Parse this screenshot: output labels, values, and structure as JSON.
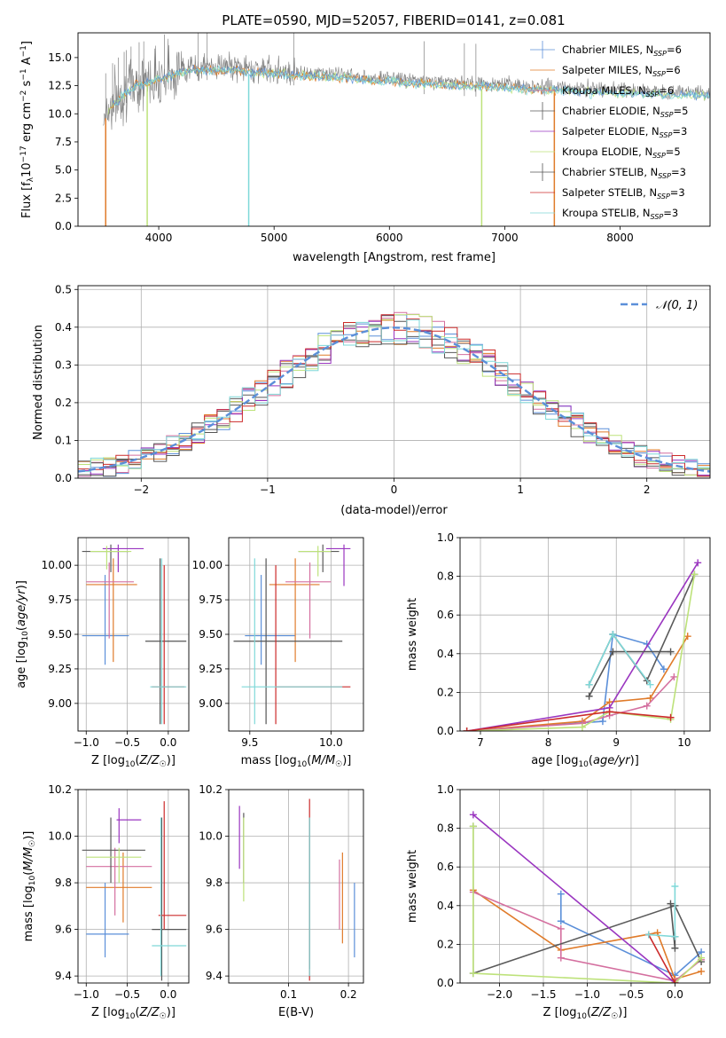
{
  "page": {
    "title": "PLATE=0590, MJD=52057, FIBERID=0141, z=0.081"
  },
  "colors": {
    "chabrier_miles": "#5b8fd9",
    "salpeter_miles": "#e07b2a",
    "kroupa_miles": "#d46f9f",
    "chabrier_elodie": "#5a5a5a",
    "salpeter_elodie": "#9a36c0",
    "kroupa_elodie": "#bde27a",
    "chabrier_stelib": "#555555",
    "salpeter_stelib": "#cc2b2b",
    "kroupa_stelib": "#7fd8d8",
    "gauss": "#5b8fd9",
    "grid": "#b0b0b0",
    "spectrum_gray": "#7f7f7f"
  },
  "chart_data": [
    {
      "id": "spectrum",
      "type": "line",
      "title": "PLATE=0590, MJD=52057, FIBERID=0141, z=0.081",
      "xlabel": "wavelength [Angstrom, rest frame]",
      "ylabel": "Flux [f_λ 10^-17 erg cm^-2 s^-1 A^-1]",
      "xlim": [
        3300,
        8780
      ],
      "ylim": [
        0,
        17.2
      ],
      "xticks": [
        "4000",
        "5000",
        "6000",
        "7000",
        "8000"
      ],
      "yticks": [
        "0.0",
        "2.5",
        "5.0",
        "7.5",
        "10.0",
        "12.5",
        "15.0"
      ],
      "legend_position": "upper-right",
      "series": [
        {
          "name": "Chabrier MILES, N_SSP=6"
        },
        {
          "name": "Salpeter MILES, N_SSP=6"
        },
        {
          "name": "Kroupa MILES, N_SSP=6"
        },
        {
          "name": "Chabrier ELODIE, N_SSP=5"
        },
        {
          "name": "Salpeter ELODIE, N_SSP=3"
        },
        {
          "name": "Kroupa ELODIE, N_SSP=5"
        },
        {
          "name": "Chabrier STELIB, N_SSP=3"
        },
        {
          "name": "Salpeter STELIB, N_SSP=3"
        },
        {
          "name": "Kroupa STELIB, N_SSP=3"
        }
      ],
      "envelope": {
        "x": [
          3500,
          3600,
          3700,
          3800,
          3900,
          4000,
          4200,
          4400,
          4600,
          4800,
          5000,
          5200,
          5400,
          5600,
          5800,
          6000,
          6200,
          6400,
          6600,
          6800,
          7000,
          7200,
          7400,
          7600,
          7800,
          8000,
          8200,
          8400,
          8780
        ],
        "y": [
          9.5,
          11.0,
          12.0,
          12.8,
          13.0,
          13.4,
          14.0,
          14.2,
          14.2,
          14.0,
          13.9,
          13.7,
          13.6,
          13.5,
          13.3,
          13.2,
          13.0,
          12.9,
          12.8,
          12.7,
          12.6,
          12.5,
          12.4,
          12.3,
          12.2,
          12.1,
          12.0,
          12.0,
          11.9
        ]
      }
    },
    {
      "id": "residuals",
      "type": "line",
      "xlabel": "(data-model)/error",
      "ylabel": "Normed distribution",
      "xlim": [
        -2.5,
        2.5
      ],
      "ylim": [
        0,
        0.51
      ],
      "xticks": [
        "−2",
        "−1",
        "0",
        "1",
        "2"
      ],
      "yticks": [
        "0.0",
        "0.1",
        "0.2",
        "0.3",
        "0.4",
        "0.5"
      ],
      "legend": "𝒩(0, 1)",
      "legend_position": "upper-right",
      "bin_width": 0.1
    },
    {
      "id": "age_vs_Z",
      "type": "scatter",
      "xlabel": "Z [log10(Z/Z☉)]",
      "ylabel": "age  [log10(age/yr)]",
      "xlim": [
        -1.1,
        0.25
      ],
      "ylim": [
        8.8,
        10.2
      ],
      "xticks": [
        "−1.0",
        "−0.5",
        "0.0"
      ],
      "yticks": [
        "9.00",
        "9.25",
        "9.50",
        "9.75",
        "10.00"
      ],
      "points": [
        {
          "c": "chabrier_miles",
          "x": -0.77,
          "y": 9.49,
          "xlo": -1.05,
          "xhi": -0.48,
          "ylo": 9.28,
          "yhi": 9.93
        },
        {
          "c": "salpeter_miles",
          "x": -0.67,
          "y": 9.86,
          "xlo": -1.0,
          "xhi": -0.38,
          "ylo": 9.3,
          "yhi": 10.05
        },
        {
          "c": "kroupa_miles",
          "x": -0.72,
          "y": 9.88,
          "xlo": -1.0,
          "xhi": -0.42,
          "ylo": 9.47,
          "yhi": 10.02
        },
        {
          "c": "chabrier_elodie",
          "x": -0.7,
          "y": 10.1,
          "xlo": -1.05,
          "xhi": -0.48,
          "ylo": 9.95,
          "yhi": 10.15
        },
        {
          "c": "salpeter_elodie",
          "x": -0.61,
          "y": 10.12,
          "xlo": -0.8,
          "xhi": -0.3,
          "ylo": 9.95,
          "yhi": 10.15
        },
        {
          "c": "kroupa_elodie",
          "x": -0.75,
          "y": 10.1,
          "xlo": -0.95,
          "xhi": -0.45,
          "ylo": 9.97,
          "yhi": 10.14
        },
        {
          "c": "chabrier_stelib",
          "x": -0.1,
          "y": 9.45,
          "xlo": -0.28,
          "xhi": 0.22,
          "ylo": 8.85,
          "yhi": 10.05
        },
        {
          "c": "salpeter_stelib",
          "x": -0.05,
          "y": 9.12,
          "xlo": -0.2,
          "xhi": 0.2,
          "ylo": 8.85,
          "yhi": 10.0
        },
        {
          "c": "kroupa_stelib",
          "x": -0.08,
          "y": 9.12,
          "xlo": -0.22,
          "xhi": 0.22,
          "ylo": 8.85,
          "yhi": 10.05
        }
      ]
    },
    {
      "id": "age_vs_mass",
      "type": "scatter",
      "xlabel": "mass [log10(M/M☉)]",
      "xlim": [
        9.37,
        10.2
      ],
      "ylim": [
        8.8,
        10.2
      ],
      "xticks": [
        "9.5",
        "10.0"
      ],
      "yticks": [
        "9.00",
        "9.25",
        "9.50",
        "9.75",
        "10.00"
      ],
      "points": [
        {
          "c": "chabrier_miles",
          "x": 9.57,
          "y": 9.49,
          "xlo": 9.47,
          "xhi": 9.78,
          "ylo": 9.28,
          "yhi": 9.93
        },
        {
          "c": "salpeter_miles",
          "x": 9.78,
          "y": 9.86,
          "xlo": 9.62,
          "xhi": 9.93,
          "ylo": 9.3,
          "yhi": 10.05
        },
        {
          "c": "kroupa_miles",
          "x": 9.87,
          "y": 9.88,
          "xlo": 9.72,
          "xhi": 10.0,
          "ylo": 9.47,
          "yhi": 10.02
        },
        {
          "c": "chabrier_elodie",
          "x": 9.95,
          "y": 10.1,
          "xlo": 9.8,
          "xhi": 10.05,
          "ylo": 9.95,
          "yhi": 10.15
        },
        {
          "c": "salpeter_elodie",
          "x": 10.08,
          "y": 10.12,
          "xlo": 9.97,
          "xhi": 10.12,
          "ylo": 9.85,
          "yhi": 10.15
        },
        {
          "c": "kroupa_elodie",
          "x": 9.92,
          "y": 10.1,
          "xlo": 9.8,
          "xhi": 10.0,
          "ylo": 9.92,
          "yhi": 10.14
        },
        {
          "c": "chabrier_stelib",
          "x": 9.6,
          "y": 9.45,
          "xlo": 9.4,
          "xhi": 10.07,
          "ylo": 8.85,
          "yhi": 10.05
        },
        {
          "c": "salpeter_stelib",
          "x": 9.66,
          "y": 9.12,
          "xlo": 9.66,
          "xhi": 10.12,
          "ylo": 8.85,
          "yhi": 10.0
        },
        {
          "c": "kroupa_stelib",
          "x": 9.53,
          "y": 9.12,
          "xlo": 9.45,
          "xhi": 10.07,
          "ylo": 8.85,
          "yhi": 10.05
        }
      ]
    },
    {
      "id": "weight_vs_age",
      "type": "line",
      "xlabel": "age  [log10(age/yr)]",
      "ylabel": "mass weight",
      "xlim": [
        6.7,
        10.38
      ],
      "ylim": [
        0,
        1.0
      ],
      "xticks": [
        "7",
        "8",
        "9",
        "10"
      ],
      "yticks": [
        "0.0",
        "0.2",
        "0.4",
        "0.6",
        "0.8",
        "1.0"
      ],
      "series": [
        {
          "c": "chabrier_miles",
          "x": [
            6.8,
            8.8,
            8.95,
            9.45,
            9.7
          ],
          "y": [
            0.0,
            0.05,
            0.5,
            0.45,
            0.32
          ]
        },
        {
          "c": "salpeter_miles",
          "x": [
            6.8,
            8.5,
            8.9,
            9.5,
            10.05
          ],
          "y": [
            0.0,
            0.05,
            0.15,
            0.17,
            0.49
          ]
        },
        {
          "c": "kroupa_miles",
          "x": [
            6.8,
            8.5,
            8.9,
            9.45,
            9.85
          ],
          "y": [
            0.0,
            0.04,
            0.08,
            0.13,
            0.28
          ]
        },
        {
          "c": "chabrier_elodie",
          "x": [
            8.6,
            8.95,
            9.45,
            10.15
          ],
          "y": [
            0.24,
            0.5,
            0.26,
            0.81
          ]
        },
        {
          "c": "salpeter_elodie",
          "x": [
            6.8,
            8.9,
            10.2
          ],
          "y": [
            0.0,
            0.12,
            0.87
          ]
        },
        {
          "c": "kroupa_elodie",
          "x": [
            6.8,
            8.5,
            8.9,
            9.8,
            10.15
          ],
          "y": [
            0.0,
            0.02,
            0.1,
            0.06,
            0.81
          ]
        },
        {
          "c": "chabrier_stelib",
          "x": [
            8.6,
            8.95,
            9.8
          ],
          "y": [
            0.18,
            0.41,
            0.41
          ]
        },
        {
          "c": "salpeter_stelib",
          "x": [
            6.8,
            8.9,
            9.8
          ],
          "y": [
            0.0,
            0.1,
            0.07
          ]
        },
        {
          "c": "kroupa_stelib",
          "x": [
            8.6,
            8.95,
            9.5
          ],
          "y": [
            0.24,
            0.5,
            0.24
          ]
        }
      ]
    },
    {
      "id": "mass_vs_Z",
      "type": "scatter",
      "xlabel": "Z [log10(Z/Z☉)]",
      "ylabel": "mass [log10(M/M☉)]",
      "xlim": [
        -1.1,
        0.25
      ],
      "ylim": [
        9.37,
        10.2
      ],
      "xticks": [
        "−1.0",
        "−0.5",
        "0.0"
      ],
      "yticks": [
        "9.4",
        "9.6",
        "9.8",
        "10.0",
        "10.2"
      ],
      "points": [
        {
          "c": "chabrier_miles",
          "x": -0.77,
          "y": 9.58,
          "xlo": -1.0,
          "xhi": -0.48,
          "ylo": 9.48,
          "yhi": 9.8
        },
        {
          "c": "salpeter_miles",
          "x": -0.55,
          "y": 9.78,
          "xlo": -1.0,
          "xhi": -0.2,
          "ylo": 9.63,
          "yhi": 9.93
        },
        {
          "c": "kroupa_miles",
          "x": -0.65,
          "y": 9.87,
          "xlo": -1.0,
          "xhi": -0.2,
          "ylo": 9.66,
          "yhi": 9.95
        },
        {
          "c": "chabrier_elodie",
          "x": -0.7,
          "y": 9.94,
          "xlo": -1.05,
          "xhi": -0.28,
          "ylo": 9.8,
          "yhi": 10.08
        },
        {
          "c": "salpeter_elodie",
          "x": -0.6,
          "y": 10.07,
          "xlo": -0.63,
          "xhi": -0.33,
          "ylo": 9.97,
          "yhi": 10.12
        },
        {
          "c": "kroupa_elodie",
          "x": -0.6,
          "y": 9.91,
          "xlo": -1.0,
          "xhi": -0.33,
          "ylo": 9.8,
          "yhi": 9.95
        },
        {
          "c": "chabrier_stelib",
          "x": -0.08,
          "y": 9.6,
          "xlo": -0.2,
          "xhi": 0.22,
          "ylo": 9.38,
          "yhi": 10.08
        },
        {
          "c": "salpeter_stelib",
          "x": -0.05,
          "y": 9.66,
          "xlo": -0.12,
          "xhi": 0.22,
          "ylo": 9.6,
          "yhi": 10.15
        },
        {
          "c": "kroupa_stelib",
          "x": -0.09,
          "y": 9.53,
          "xlo": -0.2,
          "xhi": 0.22,
          "ylo": 9.4,
          "yhi": 10.08
        }
      ]
    },
    {
      "id": "mass_vs_ebv",
      "type": "scatter",
      "xlabel": "E(B-V)",
      "xlim": [
        0.0,
        0.225
      ],
      "ylim": [
        9.37,
        10.2
      ],
      "xticks": [
        "0.1",
        "0.2"
      ],
      "yticks": [
        "9.4",
        "9.6",
        "9.8",
        "10.0",
        "10.2"
      ],
      "points": [
        {
          "c": "chabrier_miles",
          "x": 0.21,
          "y": 9.58,
          "ylo": 9.48,
          "yhi": 9.8
        },
        {
          "c": "salpeter_miles",
          "x": 0.19,
          "y": 9.78,
          "ylo": 9.54,
          "yhi": 9.93
        },
        {
          "c": "kroupa_miles",
          "x": 0.185,
          "y": 9.87,
          "ylo": 9.6,
          "yhi": 9.9
        },
        {
          "c": "chabrier_elodie",
          "x": 0.025,
          "y": 9.94,
          "ylo": 9.8,
          "yhi": 10.1
        },
        {
          "c": "salpeter_elodie",
          "x": 0.018,
          "y": 10.07,
          "ylo": 9.86,
          "yhi": 10.13
        },
        {
          "c": "kroupa_elodie",
          "x": 0.025,
          "y": 9.91,
          "ylo": 9.72,
          "yhi": 10.08
        },
        {
          "c": "chabrier_stelib",
          "x": 0.135,
          "y": 9.6,
          "ylo": 9.43,
          "yhi": 10.08
        },
        {
          "c": "salpeter_stelib",
          "x": 0.135,
          "y": 9.66,
          "ylo": 9.38,
          "yhi": 10.16
        },
        {
          "c": "kroupa_stelib",
          "x": 0.135,
          "y": 9.53,
          "ylo": 9.4,
          "yhi": 10.08
        }
      ]
    },
    {
      "id": "weight_vs_Z",
      "type": "line",
      "xlabel": "Z [log10(Z/Z☉)]",
      "ylabel": "mass weight",
      "xlim": [
        -2.45,
        0.4
      ],
      "ylim": [
        0,
        1.0
      ],
      "xticks": [
        "−2.0",
        "−1.5",
        "−1.0",
        "−0.5",
        "0.0"
      ],
      "yticks": [
        "0.0",
        "0.2",
        "0.4",
        "0.6",
        "0.8",
        "1.0"
      ],
      "series": [
        {
          "c": "chabrier_miles",
          "x": [
            -1.3,
            -1.3,
            0.0,
            0.3
          ],
          "y": [
            0.46,
            0.32,
            0.04,
            0.16
          ]
        },
        {
          "c": "salpeter_miles",
          "x": [
            -2.3,
            -1.3,
            -0.2,
            0.0,
            0.3
          ],
          "y": [
            0.48,
            0.17,
            0.26,
            0.02,
            0.06
          ]
        },
        {
          "c": "kroupa_miles",
          "x": [
            -2.3,
            -1.3,
            -1.3,
            0.0,
            0.3
          ],
          "y": [
            0.47,
            0.28,
            0.13,
            0.01,
            0.12
          ]
        },
        {
          "c": "chabrier_elodie",
          "x": [
            -2.3,
            -2.3,
            0.0,
            0.3
          ],
          "y": [
            0.81,
            0.05,
            0.4,
            0.11
          ]
        },
        {
          "c": "salpeter_elodie",
          "x": [
            -2.3,
            0.0
          ],
          "y": [
            0.87,
            0.0
          ]
        },
        {
          "c": "kroupa_elodie",
          "x": [
            -2.3,
            -2.3,
            0.0,
            0.3
          ],
          "y": [
            0.81,
            0.05,
            0.0,
            0.13
          ]
        },
        {
          "c": "chabrier_stelib",
          "x": [
            -0.05,
            0.0,
            0.0
          ],
          "y": [
            0.41,
            0.18,
            0.24
          ]
        },
        {
          "c": "salpeter_stelib",
          "x": [
            -0.3,
            0.0
          ],
          "y": [
            0.25,
            0.0
          ]
        },
        {
          "c": "kroupa_stelib",
          "x": [
            -0.3,
            0.0,
            0.0
          ],
          "y": [
            0.25,
            0.24,
            0.5
          ]
        }
      ]
    }
  ]
}
